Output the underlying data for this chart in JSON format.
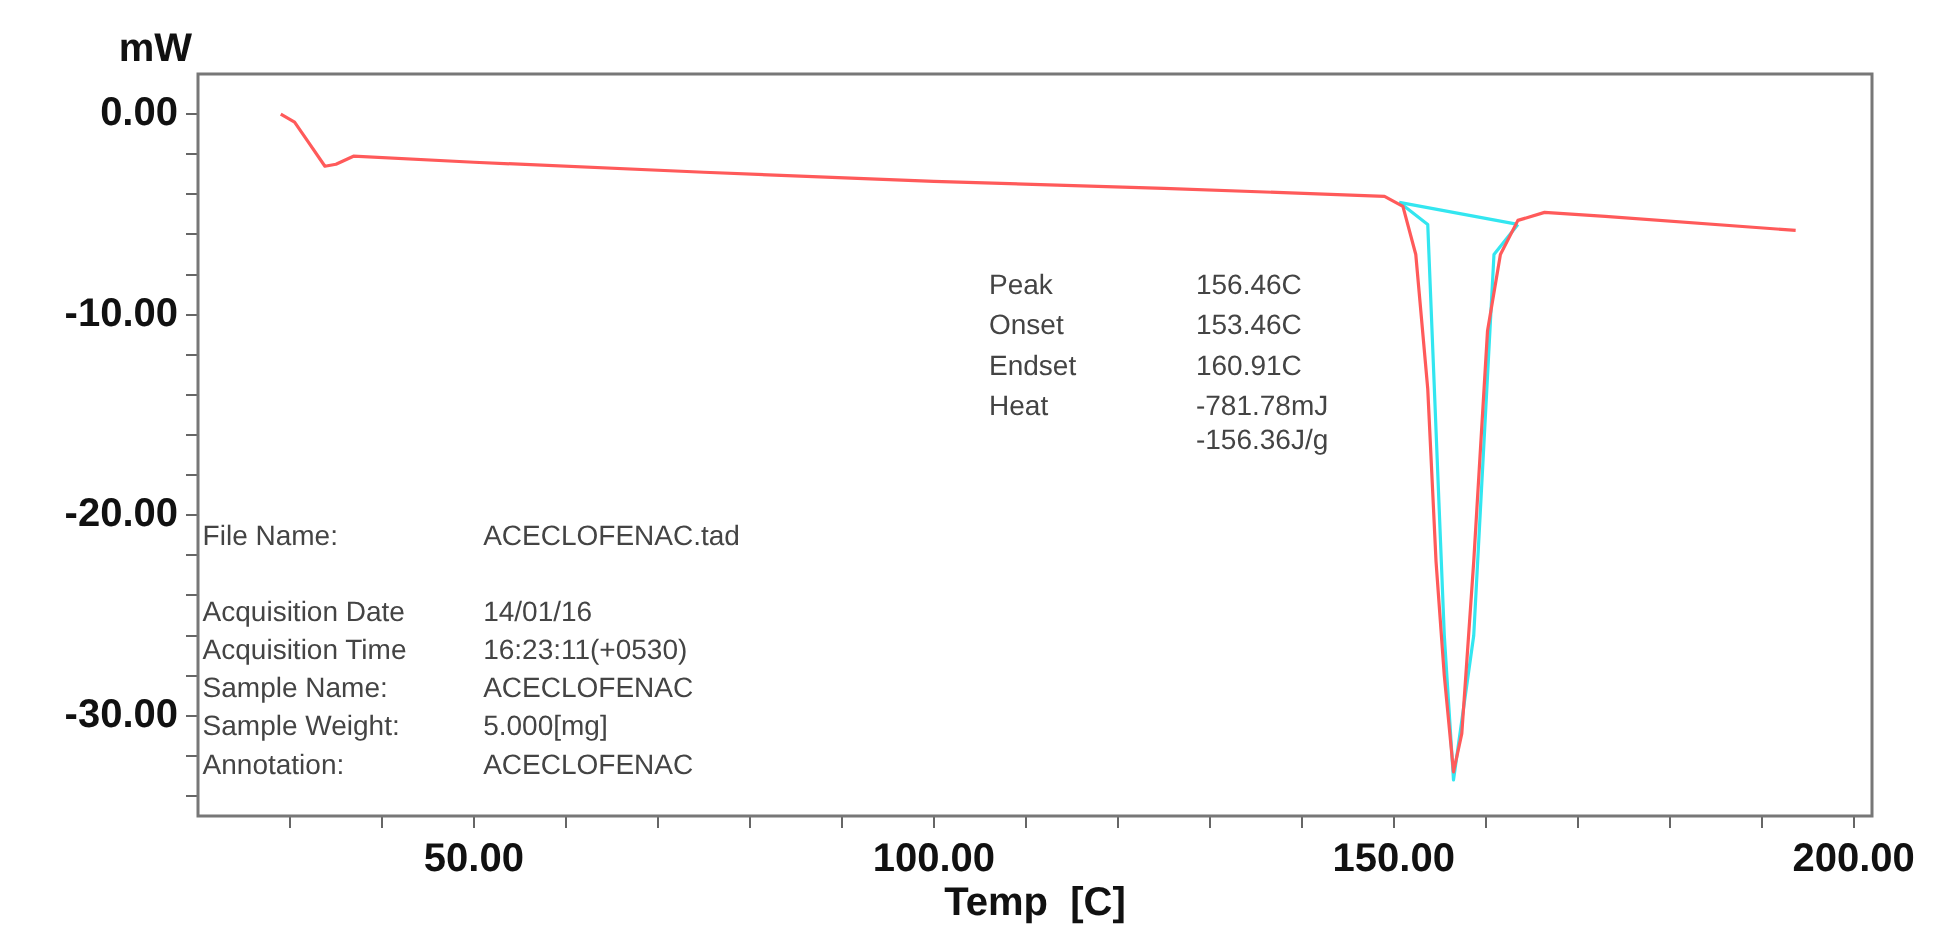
{
  "chart_data": {
    "type": "line",
    "ylabel": "mW",
    "xlabel": "Temp  [C]",
    "xlim": [
      20,
      202
    ],
    "ylim": [
      -35,
      2
    ],
    "xticks": [
      {
        "value": 30,
        "label": null
      },
      {
        "value": 40,
        "label": null
      },
      {
        "value": 50,
        "label": "50.00"
      },
      {
        "value": 60,
        "label": null
      },
      {
        "value": 70,
        "label": null
      },
      {
        "value": 80,
        "label": null
      },
      {
        "value": 90,
        "label": null
      },
      {
        "value": 100,
        "label": "100.00"
      },
      {
        "value": 110,
        "label": null
      },
      {
        "value": 120,
        "label": null
      },
      {
        "value": 130,
        "label": null
      },
      {
        "value": 140,
        "label": null
      },
      {
        "value": 150,
        "label": "150.00"
      },
      {
        "value": 160,
        "label": null
      },
      {
        "value": 170,
        "label": null
      },
      {
        "value": 180,
        "label": null
      },
      {
        "value": 190,
        "label": null
      },
      {
        "value": 200,
        "label": "200.00"
      }
    ],
    "yticks": [
      {
        "value": -34,
        "label": null
      },
      {
        "value": -32,
        "label": null
      },
      {
        "value": -30,
        "label": "-30.00"
      },
      {
        "value": -28,
        "label": null
      },
      {
        "value": -26,
        "label": null
      },
      {
        "value": -24,
        "label": null
      },
      {
        "value": -22,
        "label": null
      },
      {
        "value": -20,
        "label": "-20.00"
      },
      {
        "value": -18,
        "label": null
      },
      {
        "value": -16,
        "label": null
      },
      {
        "value": -14,
        "label": null
      },
      {
        "value": -12,
        "label": null
      },
      {
        "value": -10,
        "label": "-10.00"
      },
      {
        "value": -8,
        "label": null
      },
      {
        "value": -6,
        "label": null
      },
      {
        "value": -4,
        "label": null
      },
      {
        "value": -2,
        "label": null
      },
      {
        "value": 0,
        "label": "0.00"
      }
    ],
    "grid": false,
    "legend": false,
    "marker": "none",
    "line_style": "solid",
    "series": [
      {
        "color": "#ff5a5a",
        "x": [
          29,
          30.5,
          32,
          33.8,
          35,
          36.9,
          50,
          75,
          100,
          125,
          149,
          151,
          152.4,
          153.7,
          154.6,
          155.5,
          156.5,
          157.4,
          158.7,
          160.2,
          161.6,
          163.5,
          166.4,
          173,
          193.7
        ],
        "values": [
          0,
          -0.4,
          -1.4,
          -2.6,
          -2.5,
          -2.1,
          -2.4,
          -2.9,
          -3.35,
          -3.7,
          -4.1,
          -4.6,
          -7,
          -13.7,
          -22.3,
          -28,
          -32.8,
          -30.9,
          -22.3,
          -10.8,
          -7,
          -5.3,
          -4.9,
          -5.1,
          -5.8
        ]
      },
      {
        "color": "#33e6f0",
        "x": [
          150.6,
          163.5
        ],
        "values": [
          -4.4,
          -5.5
        ]
      },
      {
        "color": "#33e6f0",
        "x": [
          150.6,
          153.7,
          155.5,
          156.5,
          158.7,
          160.9,
          163.5
        ],
        "values": [
          -4.4,
          -5.5,
          -26,
          -33.2,
          -26,
          -7,
          -5.5
        ]
      }
    ],
    "annotations": [
      "Peak",
      "156.46C",
      "Onset",
      "153.46C",
      "Endset",
      "160.91C",
      "Heat",
      "-781.78mJ",
      "-156.36J/g",
      "File Name:",
      "ACECLOFENAC.tad",
      "Acquisition Date",
      "14/01/16",
      "Acquisition Time",
      "16:23:11(+0530)",
      "Sample Name:",
      "ACECLOFENAC",
      "Sample Weight:",
      "5.000[mg]",
      "Annotation:",
      "ACECLOFENAC"
    ]
  }
}
